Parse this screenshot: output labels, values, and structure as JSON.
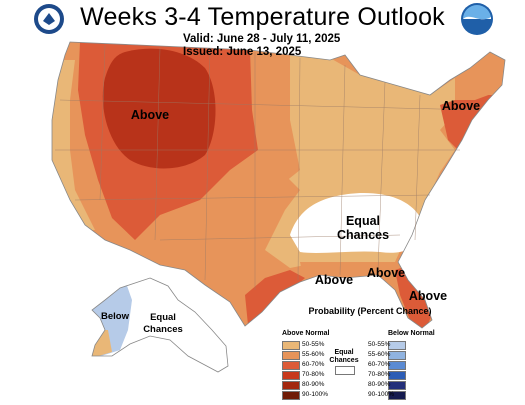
{
  "header": {
    "title": "Weeks 3-4 Temperature Outlook",
    "valid": "Valid:  June 28 - July 11, 2025",
    "issued": "Issued:  June 13, 2025",
    "logos": [
      "doc-seal-icon",
      "noaa-logo-icon"
    ]
  },
  "map_labels": {
    "above_west": "Above",
    "above_northeast": "Above",
    "above_gulf_tx": "Above",
    "above_gulf_la": "Above",
    "above_florida": "Above",
    "equal_chances_se": "Equal Chances",
    "below_alaska": "Below",
    "equal_chances_ak": "Equal Chances"
  },
  "legend": {
    "title": "Probability (Percent Chance)",
    "above_header": "Above Normal",
    "below_header": "Below Normal",
    "equal_label": "Equal Chances",
    "above": [
      {
        "label": "50-55%",
        "color": "#e9b777"
      },
      {
        "label": "55-60%",
        "color": "#e7945a"
      },
      {
        "label": "60-70%",
        "color": "#dc5b38"
      },
      {
        "label": "70-80%",
        "color": "#c7381c"
      },
      {
        "label": "80-90%",
        "color": "#a3270e"
      },
      {
        "label": "90-100%",
        "color": "#701b06"
      }
    ],
    "below": [
      {
        "label": "50-55%",
        "color": "#b6cbe8"
      },
      {
        "label": "55-60%",
        "color": "#90b3e0"
      },
      {
        "label": "60-70%",
        "color": "#5b8bd3"
      },
      {
        "label": "70-80%",
        "color": "#2d5db5"
      },
      {
        "label": "80-90%",
        "color": "#24307a"
      },
      {
        "label": "90-100%",
        "color": "#151b4f"
      }
    ]
  },
  "colors": {
    "cat_50_55": "#e9b777",
    "cat_55_60": "#e7945a",
    "cat_60_70": "#dc5b38",
    "cat_70_80": "#c7381c",
    "below_50_55": "#b6cbe8",
    "equal": "#ffffff"
  }
}
